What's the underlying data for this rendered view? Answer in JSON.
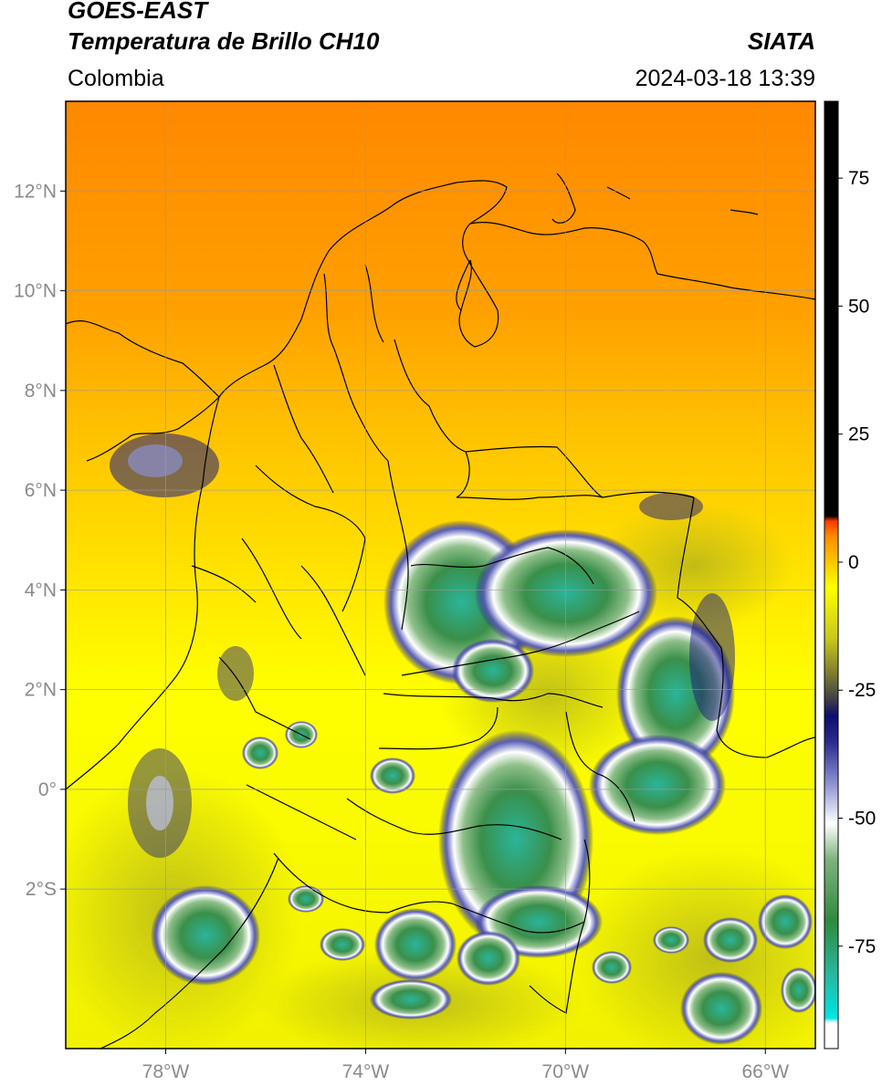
{
  "header": {
    "satellite": "GOES-EAST",
    "product": "Temperatura de Brillo CH10",
    "agency": "SIATA",
    "region": "Colombia",
    "datetime": "2024-03-18 13:39"
  },
  "map": {
    "lon_range": [
      -80,
      -65
    ],
    "lat_range": [
      -5.2,
      13.8
    ],
    "lat_ticks": [
      {
        "value": 12,
        "label": "12°N"
      },
      {
        "value": 10,
        "label": "10°N"
      },
      {
        "value": 8,
        "label": "8°N"
      },
      {
        "value": 6,
        "label": "6°N"
      },
      {
        "value": 4,
        "label": "4°N"
      },
      {
        "value": 2,
        "label": "2°N"
      },
      {
        "value": 0,
        "label": "0°"
      },
      {
        "value": -2,
        "label": "2°S"
      }
    ],
    "lon_ticks": [
      {
        "value": -78,
        "label": "78°W"
      },
      {
        "value": -74,
        "label": "74°W"
      },
      {
        "value": -70,
        "label": "70°W"
      },
      {
        "value": -66,
        "label": "66°W"
      }
    ],
    "grid": true
  },
  "colorbar": {
    "range": [
      -95,
      90
    ],
    "ticks": [
      {
        "value": 75,
        "label": "75"
      },
      {
        "value": 50,
        "label": "50"
      },
      {
        "value": 25,
        "label": "25"
      },
      {
        "value": 0,
        "label": "0"
      },
      {
        "value": -25,
        "label": "-25"
      },
      {
        "value": -50,
        "label": "-50"
      },
      {
        "value": -75,
        "label": "-75"
      }
    ],
    "stops": [
      {
        "value": -95,
        "color": "#ffffff"
      },
      {
        "value": -90,
        "color": "#ffffff"
      },
      {
        "value": -89,
        "color": "#00e5e5"
      },
      {
        "value": -80,
        "color": "#2ab59a"
      },
      {
        "value": -70,
        "color": "#2f8a3e"
      },
      {
        "value": -58,
        "color": "#7fb37f"
      },
      {
        "value": -51,
        "color": "#ffffff"
      },
      {
        "value": -43,
        "color": "#8a8fd0"
      },
      {
        "value": -35,
        "color": "#2a2a8c"
      },
      {
        "value": -30,
        "color": "#0d0d6e"
      },
      {
        "value": -27,
        "color": "#3c3c4a"
      },
      {
        "value": -22,
        "color": "#7a7a30"
      },
      {
        "value": -15,
        "color": "#c7c71e"
      },
      {
        "value": -5,
        "color": "#ffff00"
      },
      {
        "value": 5,
        "color": "#ff8c00"
      },
      {
        "value": 8,
        "color": "#ff3a00"
      },
      {
        "value": 9,
        "color": "#000000"
      },
      {
        "value": 90,
        "color": "#000000"
      }
    ]
  },
  "colors": {
    "background_north": "#ff8c00",
    "background_mid": "#ffc800",
    "background_south": "#ffff00",
    "cloud_core": "#2ab59a",
    "cloud_green": "#2f8a3e",
    "cloud_edge": "#1a1a80",
    "border": "#000000",
    "grid": "#9a9a9a"
  }
}
